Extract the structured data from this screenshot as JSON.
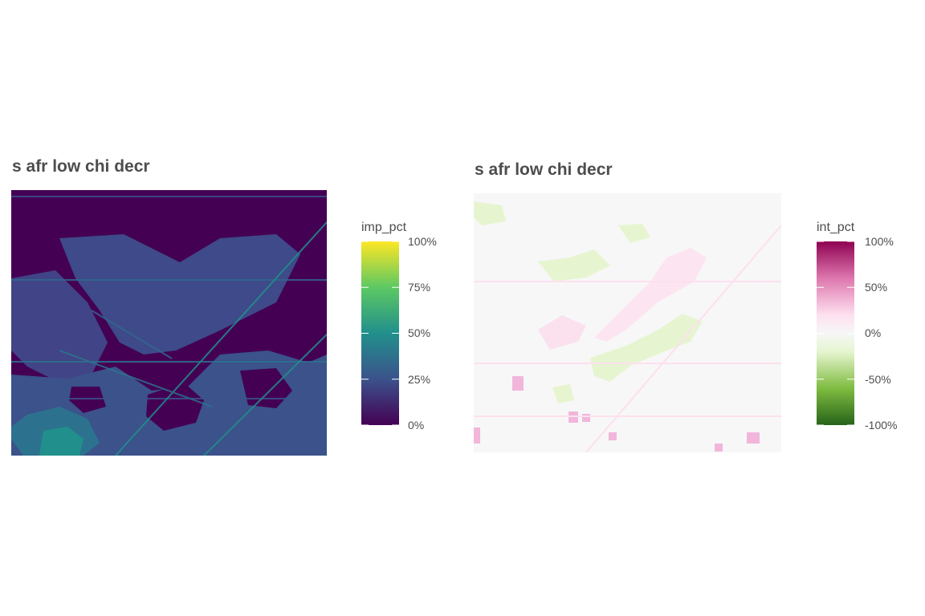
{
  "chart_data": [
    {
      "type": "heatmap",
      "title": "s afr low chi decr",
      "legend": {
        "title": "imp_pct",
        "position": "right",
        "palette": "viridis",
        "colors": [
          "#440154",
          "#3b528b",
          "#21908c",
          "#5dc863",
          "#fde725"
        ],
        "range": [
          0,
          100
        ],
        "ticks": [
          100,
          75,
          50,
          25,
          0
        ],
        "tick_labels": [
          "100%",
          "75%",
          "50%",
          "25%",
          "0%"
        ]
      },
      "grid": false,
      "regions_approx": [
        {
          "region": "background",
          "value_pct": 2
        },
        {
          "region": "central diagonal band",
          "value_pct": 22
        },
        {
          "region": "lower left",
          "value_pct": 35
        },
        {
          "region": "linear streaks",
          "value_pct": 45
        }
      ]
    },
    {
      "type": "heatmap",
      "title": "s afr low chi decr",
      "legend": {
        "title": "int_pct",
        "position": "right",
        "palette": "PiYG",
        "colors": [
          "#276419",
          "#7fbc41",
          "#e6f5d0",
          "#f7f7f7",
          "#fde0ef",
          "#de77ae",
          "#8e0152"
        ],
        "range": [
          -100,
          100
        ],
        "ticks": [
          100,
          50,
          0,
          -50,
          -100
        ],
        "tick_labels": [
          "100%",
          "50%",
          "0%",
          "-50%",
          "-100%"
        ]
      },
      "grid": false,
      "regions_approx": [
        {
          "region": "background",
          "value_pct": 0
        },
        {
          "region": "upper diagonal band",
          "value_pct": 15
        },
        {
          "region": "lower central band",
          "value_pct": -15
        },
        {
          "region": "scattered lower patches",
          "value_pct": 30
        }
      ]
    }
  ]
}
